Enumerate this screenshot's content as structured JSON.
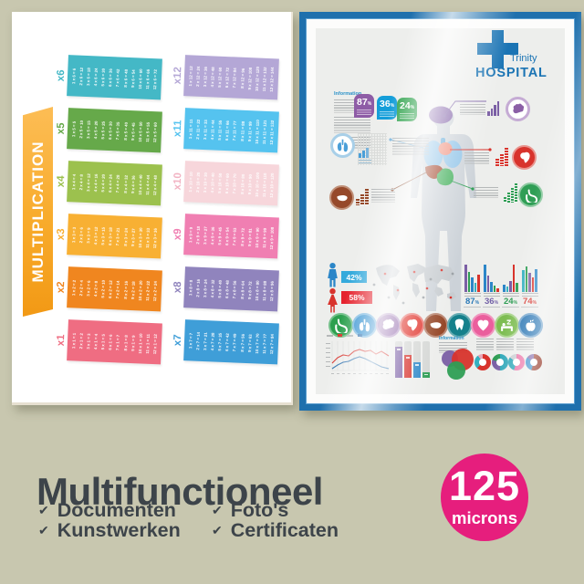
{
  "page": {
    "background_color": "#c8c7af"
  },
  "multiplication_poster": {
    "title": "MULTIPLICATION",
    "banner_color": "#f8ab2b",
    "tables": [
      {
        "label": "x6",
        "color": "#44b8c6",
        "equations": [
          "1 x 6 = 6",
          "2 x 6 = 12",
          "3 x 6 = 18",
          "4 x 6 = 24",
          "5 x 6 = 30",
          "6 x 6 = 36",
          "7 x 6 = 42",
          "8 x 6 = 48",
          "9 x 6 = 54",
          "10 x 6 = 60",
          "11 x 6 = 66",
          "12 x 6 = 72"
        ]
      },
      {
        "label": "x5",
        "color": "#66a94a",
        "equations": [
          "1 x 5 = 5",
          "2 x 5 = 10",
          "3 x 5 = 15",
          "4 x 5 = 20",
          "5 x 5 = 25",
          "6 x 5 = 30",
          "7 x 5 = 35",
          "8 x 5 = 40",
          "9 x 5 = 45",
          "10 x 5 = 50",
          "11 x 5 = 55",
          "12 x 5 = 60"
        ]
      },
      {
        "label": "x4",
        "color": "#9cc14e",
        "equations": [
          "1 x 4 = 4",
          "2 x 4 = 8",
          "3 x 4 = 12",
          "4 x 4 = 16",
          "5 x 4 = 20",
          "6 x 4 = 24",
          "7 x 4 = 28",
          "8 x 4 = 32",
          "9 x 4 = 36",
          "10 x 4 = 40",
          "11 x 4 = 44",
          "12 x 4 = 48"
        ]
      },
      {
        "label": "x3",
        "color": "#f8b033",
        "equations": [
          "1 x 3 = 3",
          "2 x 3 = 6",
          "3 x 3 = 9",
          "4 x 3 = 12",
          "5 x 3 = 15",
          "6 x 3 = 18",
          "7 x 3 = 21",
          "8 x 3 = 24",
          "9 x 3 = 27",
          "10 x 3 = 30",
          "11 x 3 = 33",
          "12 x 3 = 36"
        ]
      },
      {
        "label": "x2",
        "color": "#f0861f",
        "equations": [
          "1 x 2 = 2",
          "2 x 2 = 4",
          "3 x 2 = 6",
          "4 x 2 = 8",
          "5 x 2 = 10",
          "6 x 2 = 12",
          "7 x 2 = 14",
          "8 x 2 = 16",
          "9 x 2 = 18",
          "10 x 2 = 20",
          "11 x 2 = 22",
          "12 x 2 = 24"
        ]
      },
      {
        "label": "x1",
        "color": "#ef6d82",
        "equations": [
          "1 x 1 = 1",
          "2 x 1 = 2",
          "3 x 1 = 3",
          "4 x 1 = 4",
          "5 x 1 = 5",
          "6 x 1 = 6",
          "7 x 1 = 7",
          "8 x 1 = 8",
          "9 x 1 = 9",
          "10 x 1 = 10",
          "11 x 1 = 11",
          "12 x 1 = 12"
        ]
      },
      {
        "label": "x12",
        "color": "#b4a7d6",
        "equations": [
          "1 x 12 = 12",
          "2 x 12 = 24",
          "3 x 12 = 36",
          "4 x 12 = 48",
          "5 x 12 = 60",
          "6 x 12 = 72",
          "7 x 12 = 84",
          "8 x 12 = 96",
          "9 x 12 = 108",
          "10 x 12 = 120",
          "11 x 12 = 132",
          "12 x 12 = 144"
        ]
      },
      {
        "label": "x11",
        "color": "#55c3ef",
        "equations": [
          "1 x 11 = 11",
          "2 x 11 = 22",
          "3 x 11 = 33",
          "4 x 11 = 44",
          "5 x 11 = 55",
          "6 x 11 = 66",
          "7 x 11 = 77",
          "8 x 11 = 88",
          "9 x 11 = 99",
          "10 x 11 = 110",
          "11 x 11 = 121",
          "12 x 11 = 132"
        ]
      },
      {
        "label": "x10",
        "color": "#f7d6db",
        "label_color": "#f2b2c2",
        "equations": [
          "1 x 10 = 10",
          "2 x 10 = 20",
          "3 x 10 = 30",
          "4 x 10 = 40",
          "5 x 10 = 50",
          "6 x 10 = 60",
          "7 x 10 = 70",
          "8 x 10 = 80",
          "9 x 10 = 90",
          "10 x 10 = 100",
          "11 x 10 = 110",
          "12 x 10 = 120"
        ]
      },
      {
        "label": "x9",
        "color": "#f07fb2",
        "equations": [
          "1 x 9 = 9",
          "2 x 9 = 18",
          "3 x 9 = 27",
          "4 x 9 = 36",
          "5 x 9 = 45",
          "6 x 9 = 54",
          "7 x 9 = 63",
          "8 x 9 = 72",
          "9 x 9 = 81",
          "10 x 9 = 90",
          "11 x 9 = 99",
          "12 x 9 = 108"
        ]
      },
      {
        "label": "x8",
        "color": "#9084bd",
        "equations": [
          "1 x 8 = 8",
          "2 x 8 = 16",
          "3 x 8 = 24",
          "4 x 8 = 32",
          "5 x 8 = 40",
          "6 x 8 = 48",
          "7 x 8 = 56",
          "8 x 8 = 64",
          "9 x 8 = 72",
          "10 x 8 = 80",
          "11 x 8 = 88",
          "12 x 8 = 96"
        ]
      },
      {
        "label": "x7",
        "color": "#3f9ed8",
        "equations": [
          "1 x 7 = 7",
          "2 x 7 = 14",
          "3 x 7 = 21",
          "4 x 7 = 28",
          "5 x 7 = 35",
          "6 x 7 = 42",
          "7 x 7 = 49",
          "8 x 7 = 56",
          "9 x 7 = 63",
          "10 x 7 = 70",
          "11 x 7 = 77",
          "12 x 7 = 84"
        ]
      }
    ]
  },
  "hospital_poster": {
    "frame_color": "#1f70ad",
    "brand_color": "#1b74b4",
    "hospital_name": "Trinity",
    "hospital_name2": "HOSPITAL",
    "information_label": "Information",
    "information_label_2": "Information",
    "top_badges": [
      {
        "value": "87",
        "unit": "%",
        "color": "#8e5ca6"
      },
      {
        "value": "36",
        "unit": "%",
        "color": "#159ed9"
      },
      {
        "value": "24",
        "unit": "%",
        "color": "#2ea24c"
      }
    ],
    "gender_stats": [
      {
        "icon": "male-icon",
        "value": "42%",
        "box_color": "#35aadc",
        "icon_color": "#2b86c8"
      },
      {
        "icon": "female-icon",
        "value": "58%",
        "box_color": "#e5232e",
        "icon_color": "#d8332c"
      }
    ],
    "bar_groups": [
      {
        "label": "87",
        "unit": "%",
        "label_color": "#2b7ab8",
        "bars": [
          [
            "#7b5fa5",
            30
          ],
          [
            "#2f9e55",
            22
          ],
          [
            "#2b86c8",
            16
          ],
          [
            "#35b0c0",
            10
          ],
          [
            "#d8332c",
            19
          ]
        ]
      },
      {
        "label": "36",
        "unit": "%",
        "label_color": "#7463a8",
        "bars": [
          [
            "#2b86c8",
            30
          ],
          [
            "#7b5fa5",
            18
          ],
          [
            "#2b86c8",
            11
          ],
          [
            "#2f9e55",
            7
          ],
          [
            "#d8332c",
            4
          ]
        ]
      },
      {
        "label": "24",
        "unit": "%",
        "label_color": "#2f9e55",
        "bars": [
          [
            "#2b86c8",
            8
          ],
          [
            "#35b0c0",
            6
          ],
          [
            "#7b5fa5",
            12
          ],
          [
            "#d8332c",
            30
          ],
          [
            "#2f9e55",
            10
          ]
        ]
      },
      {
        "label": "74",
        "unit": "%",
        "label_color": "#d8332c",
        "bars": [
          [
            "#35b0c0",
            24
          ],
          [
            "#2f9e55",
            28
          ],
          [
            "#7b5fa5",
            21
          ],
          [
            "#d8332c",
            16
          ],
          [
            "#2b86c8",
            25
          ]
        ]
      }
    ],
    "organ_circles": [
      {
        "icon": "stomach-icon",
        "color": "#2ca04e"
      },
      {
        "icon": "lungs-icon",
        "color": "#2e8fd0"
      },
      {
        "icon": "brain-icon",
        "color": "#8b5fa6"
      },
      {
        "icon": "heart-organ-icon",
        "color": "#e03028"
      },
      {
        "icon": "liver-icon",
        "color": "#96492a"
      },
      {
        "icon": "tooth-icon",
        "color": "#15808b"
      },
      {
        "icon": "heart-icon",
        "color": "#ea5f9d"
      },
      {
        "icon": "sleep-icon",
        "color": "#7dbd51"
      },
      {
        "icon": "apple-icon",
        "color": "#1f6fb0"
      }
    ],
    "column_chart": {
      "values": [
        0.85,
        0.62,
        0.42,
        0.16
      ],
      "colors": [
        "#7b5fa5",
        "#d8332c",
        "#2b86c8",
        "#2f9e55"
      ]
    },
    "donuts": [
      {
        "segments": [
          [
            "#d8332c",
            62
          ],
          [
            "#35b0c0",
            28
          ],
          [
            "#e8a7b8",
            10
          ]
        ]
      },
      {
        "segments": [
          [
            "#2aa6b8",
            50
          ],
          [
            "#7b5fa5",
            30
          ],
          [
            "#2f9e55",
            20
          ]
        ]
      },
      {
        "segments": [
          [
            "#ec6fa5",
            55
          ],
          [
            "#2aa6b8",
            30
          ],
          [
            "#c9cdd1",
            15
          ]
        ]
      },
      {
        "segments": [
          [
            "#943524",
            55
          ],
          [
            "#2b86c8",
            30
          ],
          [
            "#7b5fa5",
            15
          ]
        ]
      }
    ]
  },
  "footer": {
    "title": "Multifunctioneel",
    "check_glyph": "✔",
    "items": [
      "Documenten",
      "Kunstwerken",
      "Foto's",
      "Certificaten"
    ],
    "badge": {
      "value": "125",
      "unit": "microns",
      "color": "#e61e7d"
    }
  }
}
